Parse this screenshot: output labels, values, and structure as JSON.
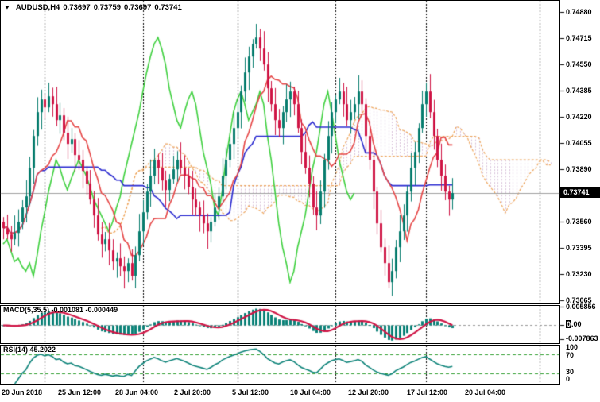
{
  "header": {
    "symbol": "AUDUSD,H4",
    "open": "0.73697",
    "high": "0.73759",
    "low": "0.73697",
    "close": "0.73741"
  },
  "price_axis": {
    "labels": [
      "0.74880",
      "0.74715",
      "0.74550",
      "0.74385",
      "0.74220",
      "0.74055",
      "0.73890",
      "0.73560",
      "0.73395",
      "0.73230",
      "0.73065"
    ],
    "current": "0.73741"
  },
  "time_axis": {
    "labels": [
      "20 Jun 2018",
      "25 Jun 12:00",
      "28 Jun 04:00",
      "2 Jul 20:00",
      "5 Jul 12:00",
      "10 Jul 04:00",
      "12 Jul 20:00",
      "17 Jul 12:00",
      "20 Jul 04:00"
    ]
  },
  "macd": {
    "label": "MACD(5,35,5) -0.001081 -0.000449",
    "axis_top": "0.005856",
    "axis_zero_black": "0",
    "axis_zero_rest": ".00",
    "axis_bottom": "-0.007863"
  },
  "rsi": {
    "label": "RSI(14) 45.2022",
    "axis": [
      "100",
      "70",
      "30",
      "0"
    ]
  },
  "colors": {
    "bull": "#077d6e",
    "bear": "#cf1445",
    "tenkan": "#e54545",
    "kijun": "#2b2bd0",
    "chikou": "#3fd03f",
    "cloud_edge": "#eda55c",
    "cloud_fill": "#d8c0da",
    "macd_hist": "#0b8278",
    "macd_signal": "#cf1445",
    "rsi_line": "#0b8278",
    "rsi_level": "#2f9e2f",
    "price_line": "#a0a0a0",
    "separator": "#000000",
    "zero_line": "#999999"
  },
  "chart_data": {
    "type": "candlestick",
    "symbol": "AUDUSD",
    "timeframe": "H4",
    "title": "AUDUSD,H4 0.73697 0.73759 0.73697 0.73741",
    "ohlc_header": {
      "open": 0.73697,
      "high": 0.73759,
      "low": 0.73697,
      "close": 0.73741
    },
    "current_price": 0.73741,
    "ylim": [
      0.73065,
      0.7488
    ],
    "y_ticks": [
      0.7488,
      0.74715,
      0.7455,
      0.74385,
      0.7422,
      0.74055,
      0.7389,
      0.7356,
      0.73395,
      0.7323,
      0.73065
    ],
    "x_ticks": [
      "20 Jun 2018",
      "25 Jun 12:00",
      "28 Jun 04:00",
      "2 Jul 20:00",
      "5 Jul 12:00",
      "10 Jul 04:00",
      "12 Jul 20:00",
      "17 Jul 12:00",
      "20 Jul 04:00"
    ],
    "separator_bar_indices": [
      11,
      37,
      62,
      88,
      112,
      142
    ],
    "first_open": 0.7356,
    "closes": [
      0.7352,
      0.7348,
      0.7345,
      0.7349,
      0.7356,
      0.7365,
      0.7372,
      0.739,
      0.741,
      0.7425,
      0.7433,
      0.7428,
      0.7435,
      0.743,
      0.742,
      0.7423,
      0.7412,
      0.7405,
      0.7408,
      0.7398,
      0.7395,
      0.7388,
      0.738,
      0.737,
      0.736,
      0.7348,
      0.7342,
      0.7345,
      0.7338,
      0.7331,
      0.7333,
      0.7328,
      0.7325,
      0.733,
      0.7322,
      0.7335,
      0.735,
      0.7362,
      0.7375,
      0.7385,
      0.7395,
      0.739,
      0.7382,
      0.7376,
      0.7383,
      0.7389,
      0.7395,
      0.739,
      0.7385,
      0.7378,
      0.737,
      0.7365,
      0.736,
      0.7355,
      0.735,
      0.7356,
      0.7365,
      0.7372,
      0.7385,
      0.7395,
      0.7405,
      0.7415,
      0.7425,
      0.7438,
      0.745,
      0.746,
      0.7468,
      0.7472,
      0.7465,
      0.7455,
      0.744,
      0.743,
      0.742,
      0.7415,
      0.7425,
      0.7433,
      0.7438,
      0.743,
      0.7415,
      0.74,
      0.739,
      0.738,
      0.7365,
      0.736,
      0.7375,
      0.7395,
      0.741,
      0.7425,
      0.7433,
      0.7438,
      0.743,
      0.742,
      0.7425,
      0.743,
      0.7438,
      0.743,
      0.741,
      0.7395,
      0.7375,
      0.7355,
      0.734,
      0.733,
      0.7318,
      0.7325,
      0.734,
      0.735,
      0.736,
      0.7375,
      0.739,
      0.74,
      0.7415,
      0.743,
      0.7438,
      0.7425,
      0.741,
      0.7395,
      0.7385,
      0.7375,
      0.737,
      0.73741
    ],
    "overlays": [
      "ichimoku-cloud",
      "tenkan-line",
      "kijun-line",
      "chikou-line"
    ],
    "panels": [
      {
        "name": "MACD",
        "params": [
          5,
          35,
          5
        ],
        "values": [
          -0.001081,
          -0.000449
        ],
        "range": [
          -0.007863,
          0.005856
        ]
      },
      {
        "name": "RSI",
        "params": [
          14
        ],
        "value": 45.2022,
        "levels": [
          70,
          30
        ],
        "range": [
          0,
          100
        ]
      }
    ]
  }
}
